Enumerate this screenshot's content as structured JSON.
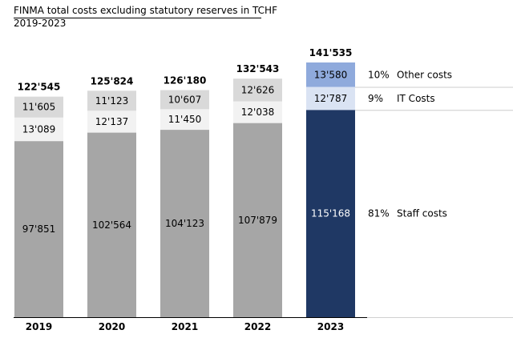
{
  "header": {
    "title": "FINMA total costs excluding statutory reserves in TCHF",
    "subtitle": "2019-2023"
  },
  "chart_data": {
    "type": "bar",
    "stacked": true,
    "title": "FINMA total costs excluding statutory reserves in TCHF",
    "subtitle": "2019-2023",
    "categories": [
      "2019",
      "2020",
      "2021",
      "2022",
      "2023"
    ],
    "series": [
      {
        "name": "Staff costs",
        "values": [
          97851,
          102564,
          104123,
          107879,
          115168
        ],
        "labels": [
          "97'851",
          "102'564",
          "104'123",
          "107'879",
          "115'168"
        ]
      },
      {
        "name": "IT Costs",
        "values": [
          13089,
          12137,
          11450,
          12038,
          12787
        ],
        "labels": [
          "13'089",
          "12'137",
          "11'450",
          "12'038",
          "12'787"
        ]
      },
      {
        "name": "Other costs",
        "values": [
          11605,
          11123,
          10607,
          12626,
          13580
        ],
        "labels": [
          "11'605",
          "11'123",
          "10'607",
          "12'626",
          "13'580"
        ]
      }
    ],
    "totals": [
      "122'545",
      "125'824",
      "126'180",
      "132'543",
      "141'535"
    ],
    "legend": [
      {
        "pct": "10%",
        "name": "Other costs"
      },
      {
        "pct": "9%",
        "name": "IT Costs"
      },
      {
        "pct": "81%",
        "name": "Staff costs"
      }
    ],
    "highlight_category": "2023",
    "colors": {
      "grey": [
        "#a6a6a6",
        "#f2f2f2",
        "#d9d9d9"
      ],
      "highlight": [
        "#1f3864",
        "#dae3f3",
        "#8faadc"
      ],
      "grey_text": [
        "#000000",
        "#000000",
        "#000000"
      ],
      "highlight_text": [
        "#ffffff",
        "#000000",
        "#000000"
      ]
    },
    "ylim": [
      0,
      141535
    ],
    "grid": false,
    "legend_placement": "right"
  }
}
